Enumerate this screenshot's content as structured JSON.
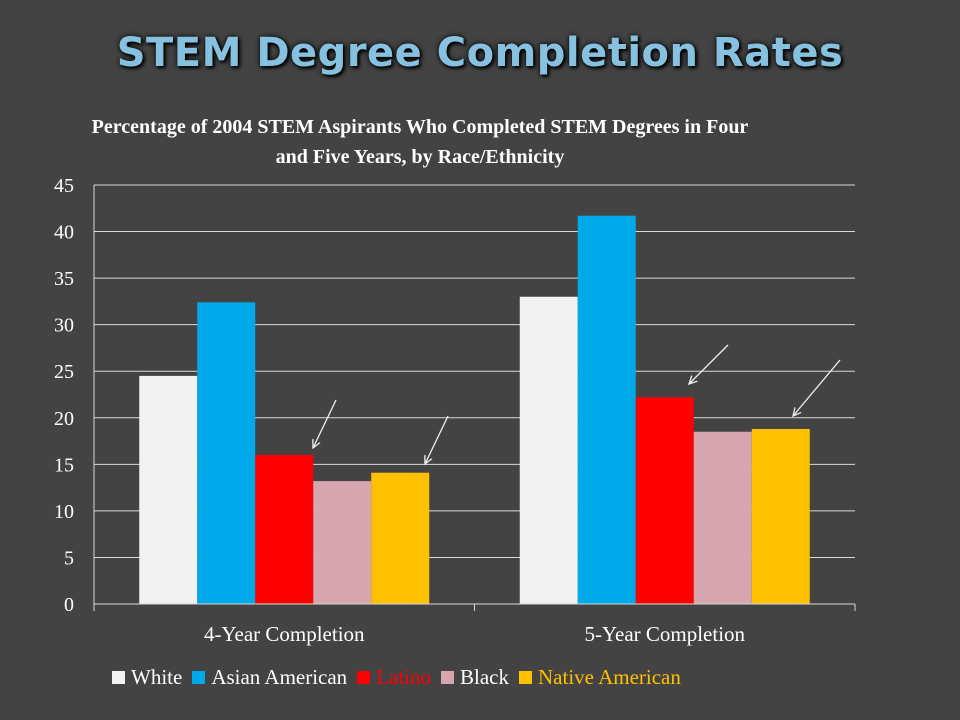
{
  "slide": {
    "title": "STEM Degree Completion Rates"
  },
  "chart_data": {
    "type": "bar",
    "title": "Percentage of 2004 STEM Aspirants Who Completed STEM Degrees in Four and Five Years, by Race/Ethnicity",
    "categories": [
      "4-Year Completion",
      "5-Year Completion"
    ],
    "series": [
      {
        "name": "White",
        "values": [
          24.5,
          33.0
        ],
        "color": "#f2f2f2",
        "legend_text_color": "#ffffff"
      },
      {
        "name": "Asian American",
        "values": [
          32.4,
          41.7
        ],
        "color": "#00aaea",
        "legend_text_color": "#ffffff"
      },
      {
        "name": "Latino",
        "values": [
          16.0,
          22.2
        ],
        "color": "#ff0000",
        "legend_text_color": "#ff0000"
      },
      {
        "name": "Black",
        "values": [
          13.2,
          18.5
        ],
        "color": "#d5a6b0",
        "legend_text_color": "#ffffff"
      },
      {
        "name": "Native American",
        "values": [
          14.1,
          18.8
        ],
        "color": "#ffc000",
        "legend_text_color": "#ffc000"
      }
    ],
    "ylim": [
      0,
      45
    ],
    "yticks": [
      0,
      5,
      10,
      15,
      20,
      25,
      30,
      35,
      40,
      45
    ],
    "grid": true,
    "legend_position": "bottom",
    "xlabel": "",
    "ylabel": ""
  }
}
